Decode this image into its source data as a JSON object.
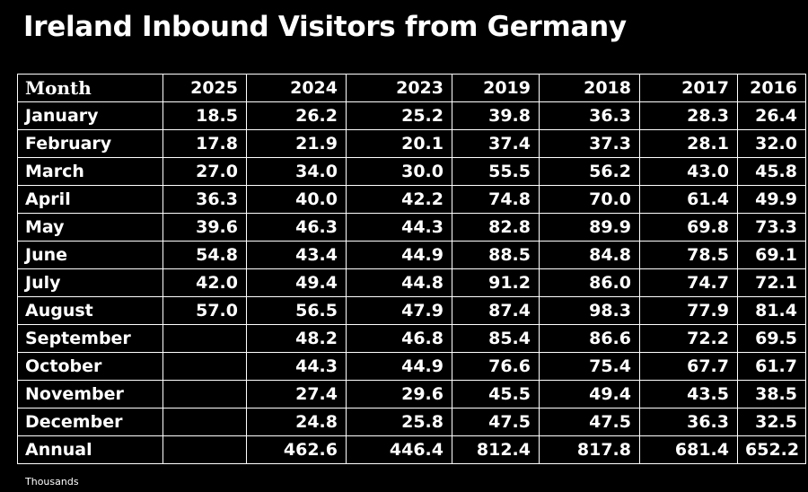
{
  "title": "Ireland Inbound Visitors from Germany",
  "note": "Thousands",
  "chart_data": {
    "type": "table",
    "title": "Ireland Inbound Visitors from Germany",
    "unit_note": "Thousands",
    "columns": [
      "Month",
      "2025",
      "2024",
      "2023",
      "2019",
      "2018",
      "2017",
      "2016"
    ],
    "rows": [
      [
        "January",
        "18.5",
        "26.2",
        "25.2",
        "39.8",
        "36.3",
        "28.3",
        "26.4"
      ],
      [
        "February",
        "17.8",
        "21.9",
        "20.1",
        "37.4",
        "37.3",
        "28.1",
        "32.0"
      ],
      [
        "March",
        "27.0",
        "34.0",
        "30.0",
        "55.5",
        "56.2",
        "43.0",
        "45.8"
      ],
      [
        "April",
        "36.3",
        "40.0",
        "42.2",
        "74.8",
        "70.0",
        "61.4",
        "49.9"
      ],
      [
        "May",
        "39.6",
        "46.3",
        "44.3",
        "82.8",
        "89.9",
        "69.8",
        "73.3"
      ],
      [
        "June",
        "54.8",
        "43.4",
        "44.9",
        "88.5",
        "84.8",
        "78.5",
        "69.1"
      ],
      [
        "July",
        "42.0",
        "49.4",
        "44.8",
        "91.2",
        "86.0",
        "74.7",
        "72.1"
      ],
      [
        "August",
        "57.0",
        "56.5",
        "47.9",
        "87.4",
        "98.3",
        "77.9",
        "81.4"
      ],
      [
        "September",
        "",
        "48.2",
        "46.8",
        "85.4",
        "86.6",
        "72.2",
        "69.5"
      ],
      [
        "October",
        "",
        "44.3",
        "44.9",
        "76.6",
        "75.4",
        "67.7",
        "61.7"
      ],
      [
        "November",
        "",
        "27.4",
        "29.6",
        "45.5",
        "49.4",
        "43.5",
        "38.5"
      ],
      [
        "December",
        "",
        "24.8",
        "25.8",
        "47.5",
        "47.5",
        "36.3",
        "32.5"
      ],
      [
        "Annual",
        "",
        "462.6",
        "446.4",
        "812.4",
        "817.8",
        "681.4",
        "652.2"
      ]
    ]
  }
}
